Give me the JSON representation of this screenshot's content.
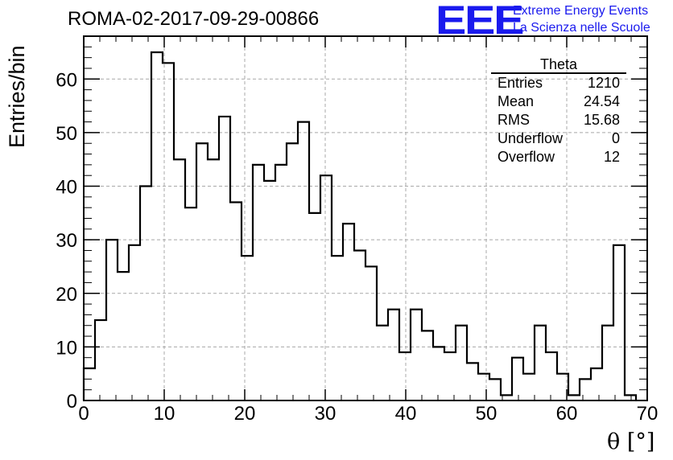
{
  "header": {
    "run_title": "ROMA-02-2017-09-29-00866",
    "logo": "EEE",
    "logo_line1": "Extreme Energy Events",
    "logo_line2": "La Scienza nelle Scuole"
  },
  "stats_box": {
    "title": "Theta",
    "rows": [
      {
        "label": "Entries",
        "value": "1210"
      },
      {
        "label": "Mean",
        "value": "24.54"
      },
      {
        "label": "RMS",
        "value": "15.68"
      },
      {
        "label": "Underflow",
        "value": "0"
      },
      {
        "label": "Overflow",
        "value": "12"
      }
    ]
  },
  "chart_data": {
    "type": "bar",
    "style": "step-histogram",
    "title": "ROMA-02-2017-09-29-00866",
    "xlabel": "θ [°]",
    "ylabel": "Entries/bin",
    "xlim": [
      0,
      70
    ],
    "ylim": [
      0,
      68
    ],
    "grid": true,
    "bin_width": 1.4,
    "bin_start": 0,
    "values": [
      6,
      15,
      30,
      24,
      29,
      40,
      65,
      63,
      45,
      36,
      48,
      45,
      53,
      37,
      27,
      44,
      41,
      44,
      48,
      52,
      35,
      42,
      27,
      33,
      28,
      25,
      14,
      17,
      9,
      17,
      13,
      10,
      9,
      14,
      7,
      5,
      4,
      1,
      8,
      5,
      14,
      9,
      5,
      1,
      4,
      6,
      14,
      29,
      1
    ],
    "xticks": [
      "0",
      "10",
      "20",
      "30",
      "40",
      "50",
      "60",
      "70"
    ],
    "yticks": [
      "0",
      "10",
      "20",
      "30",
      "40",
      "50",
      "60"
    ],
    "line_color": "#000000"
  }
}
